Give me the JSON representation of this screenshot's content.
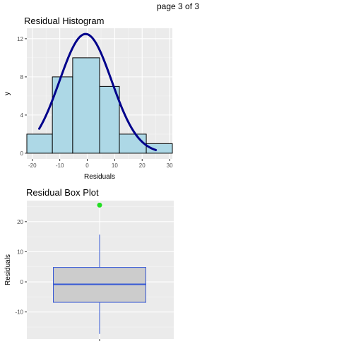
{
  "page": {
    "label": "page 3 of 3"
  },
  "chart_data": [
    {
      "type": "histogram",
      "title": "Residual Histogram",
      "xlabel": "Residuals",
      "ylabel": "y",
      "xlim": [
        -22,
        31
      ],
      "ylim": [
        -0.6,
        13.1
      ],
      "x_ticks": [
        -20,
        -10,
        0,
        10,
        20,
        30
      ],
      "y_ticks": [
        0,
        4,
        8,
        12
      ],
      "bins": [
        {
          "x0": -22,
          "x1": -12.7,
          "count": 2
        },
        {
          "x0": -12.7,
          "x1": -5.3,
          "count": 8
        },
        {
          "x0": -5.3,
          "x1": 4.5,
          "count": 10
        },
        {
          "x0": 4.5,
          "x1": 11.7,
          "count": 7
        },
        {
          "x0": 11.7,
          "x1": 21.5,
          "count": 2
        },
        {
          "x0": 21.5,
          "x1": 31,
          "count": 1
        }
      ],
      "bar_fill": "#add8e6",
      "bar_stroke": "#000000",
      "density_curve": {
        "peak": 12.5,
        "mean": -0.6,
        "sd": 9.5,
        "x_range": [
          -17.5,
          25
        ],
        "color": "#00008b"
      },
      "panel_background": "#ebebeb",
      "grid": true
    },
    {
      "type": "boxplot",
      "title": "Residual Box Plot",
      "xlabel": "",
      "ylabel": "Residuals",
      "ylim": [
        -19,
        27
      ],
      "y_ticks": [
        -10,
        0,
        10,
        20
      ],
      "stats": {
        "min": -17.3,
        "q1": -6.8,
        "median": -0.8,
        "q3": 4.8,
        "max": 15.7
      },
      "outliers": [
        25.5
      ],
      "box_fill": "#cccccc",
      "box_stroke": "#3557d5",
      "outlier_color": "#22dd22",
      "panel_background": "#ebebeb",
      "grid": true
    }
  ]
}
